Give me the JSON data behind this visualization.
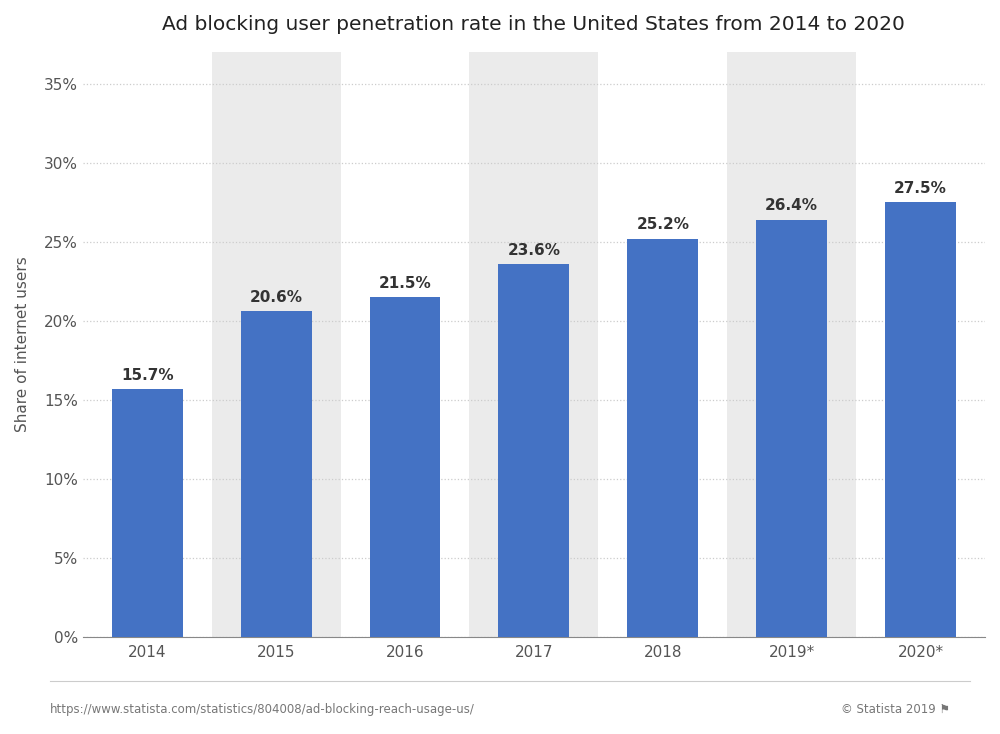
{
  "title": "Ad blocking user penetration rate in the United States from 2014 to 2020",
  "categories": [
    "2014",
    "2015",
    "2016",
    "2017",
    "2018",
    "2019*",
    "2020*"
  ],
  "values": [
    15.7,
    20.6,
    21.5,
    23.6,
    25.2,
    26.4,
    27.5
  ],
  "bar_color": "#4472c4",
  "ylabel": "Share of internet users",
  "ylim": [
    0,
    37
  ],
  "yticks": [
    0,
    5,
    10,
    15,
    20,
    25,
    30,
    35
  ],
  "ytick_labels": [
    "0%",
    "5%",
    "10%",
    "15%",
    "20%",
    "25%",
    "30%",
    "35%"
  ],
  "title_fontsize": 14.5,
  "label_fontsize": 11,
  "tick_fontsize": 11,
  "footer_left": "https://www.statista.com/statistics/804008/ad-blocking-reach-usage-us/",
  "footer_right": "© Statista 2019",
  "background_color": "#ffffff",
  "col_bg_odd": "#ebebeb",
  "col_bg_even": "#ffffff",
  "grid_color": "#cccccc",
  "bar_label_fontsize": 11,
  "bar_label_color": "#333333",
  "bar_width": 0.55,
  "footer_flag": "⚑"
}
